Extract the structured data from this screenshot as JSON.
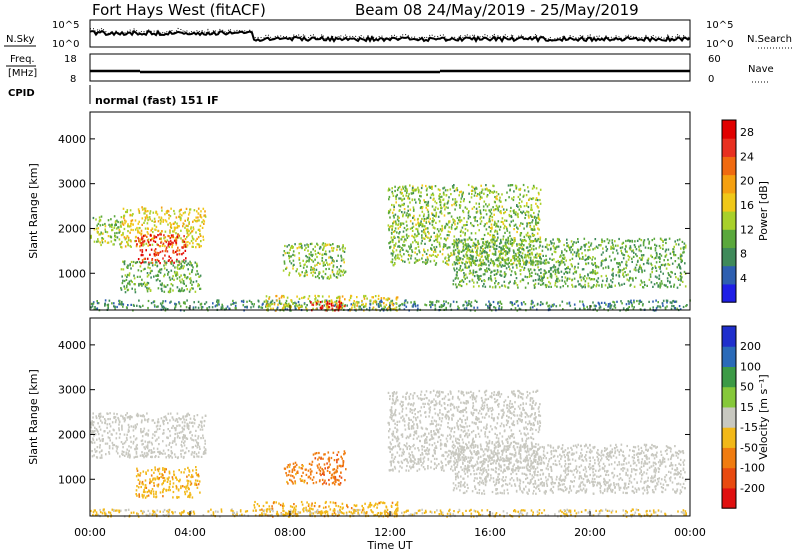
{
  "header": {
    "station": "Fort Hays West (fitACF)",
    "beam_date": "Beam 08 24/May/2019 - 25/May/2019"
  },
  "top_panels": {
    "noise_left_label": "N.Sky",
    "noise_right_label": "N.Search",
    "noise_ticks_left": [
      "10^5",
      "10^0"
    ],
    "noise_ticks_right": [
      "10^5",
      "10^0"
    ],
    "freq_left_label_1": "Freq.",
    "freq_left_label_2": "[MHz]",
    "freq_ticks_left": [
      "18",
      "8"
    ],
    "freq_right_label": "Nave",
    "freq_ticks_right": [
      "60",
      "0"
    ],
    "cpid_label": "CPID",
    "cpid_value": "normal (fast) 151 IF"
  },
  "colors": {
    "power": [
      "#1f1fe6",
      "#2e5fb0",
      "#3f8a5a",
      "#5aa83c",
      "#a8d02a",
      "#f0c818",
      "#f5a010",
      "#f06a10",
      "#e83020",
      "#e00000"
    ],
    "velocity": [
      "#1f2fcc",
      "#2a6ab8",
      "#3c9a46",
      "#86c83a",
      "#c8c8c0",
      "#f2b818",
      "#f07c10",
      "#e84a10",
      "#e01010"
    ]
  },
  "chart_data": [
    {
      "type": "heatmap",
      "name": "power",
      "ylabel": "Slant Range [km]",
      "xlabel": "",
      "x_ticks": [
        "00:00",
        "04:00",
        "08:00",
        "12:00",
        "16:00",
        "20:00",
        "00:00"
      ],
      "y_ticks": [
        "1000",
        "2000",
        "3000",
        "4000"
      ],
      "ylim": [
        180,
        4600
      ],
      "xlim_hours": [
        0,
        24
      ],
      "colorbar": {
        "label": "Power [dB]",
        "ticks": [
          "4",
          "8",
          "12",
          "16",
          "20",
          "24",
          "28"
        ],
        "range": [
          0,
          30
        ]
      },
      "echo_regions": [
        {
          "t": [
            0.0,
            1.2
          ],
          "r": [
            1650,
            2300
          ],
          "v": 12
        },
        {
          "t": [
            1.2,
            4.6
          ],
          "r": [
            1600,
            2500
          ],
          "v": 16
        },
        {
          "t": [
            1.8,
            3.8
          ],
          "r": [
            1250,
            1900
          ],
          "v": 26
        },
        {
          "t": [
            1.2,
            4.4
          ],
          "r": [
            600,
            1300
          ],
          "v": 10
        },
        {
          "t": [
            7.7,
            10.2
          ],
          "r": [
            900,
            1700
          ],
          "v": 12
        },
        {
          "t": [
            11.9,
            18.0
          ],
          "r": [
            1200,
            3000
          ],
          "v": 12
        },
        {
          "t": [
            14.5,
            23.8
          ],
          "r": [
            700,
            1800
          ],
          "v": 10
        },
        {
          "t": [
            0.0,
            24.0
          ],
          "r": [
            190,
            420
          ],
          "v": 8
        },
        {
          "t": [
            7.0,
            12.3
          ],
          "r": [
            190,
            520
          ],
          "v": 16
        },
        {
          "t": [
            8.8,
            10.2
          ],
          "r": [
            190,
            400
          ],
          "v": 28
        }
      ]
    },
    {
      "type": "heatmap",
      "name": "velocity",
      "ylabel": "Slant Range [km]",
      "xlabel": "Time UT",
      "x_ticks": [
        "00:00",
        "04:00",
        "08:00",
        "12:00",
        "16:00",
        "20:00",
        "00:00"
      ],
      "y_ticks": [
        "1000",
        "2000",
        "3000",
        "4000"
      ],
      "ylim": [
        180,
        4600
      ],
      "xlim_hours": [
        0,
        24
      ],
      "colorbar": {
        "label": "Velocity [m s⁻¹]",
        "ticks": [
          "200",
          "100",
          "50",
          "15",
          "-15",
          "-50",
          "-100",
          "-200"
        ]
      },
      "echo_regions": [
        {
          "t": [
            0.0,
            4.6
          ],
          "r": [
            1500,
            2500
          ],
          "v": 0
        },
        {
          "t": [
            1.8,
            4.4
          ],
          "r": [
            600,
            1300
          ],
          "v": -40
        },
        {
          "t": [
            7.7,
            8.8
          ],
          "r": [
            900,
            1400
          ],
          "v": -60
        },
        {
          "t": [
            8.8,
            10.2
          ],
          "r": [
            900,
            1650
          ],
          "v": -90
        },
        {
          "t": [
            11.9,
            18.0
          ],
          "r": [
            1200,
            3000
          ],
          "v": 0
        },
        {
          "t": [
            14.5,
            23.8
          ],
          "r": [
            700,
            1800
          ],
          "v": 0
        },
        {
          "t": [
            6.5,
            12.3
          ],
          "r": [
            190,
            520
          ],
          "v": -40
        },
        {
          "t": [
            0.0,
            24.0
          ],
          "r": [
            190,
            350
          ],
          "v": -20
        }
      ]
    }
  ]
}
